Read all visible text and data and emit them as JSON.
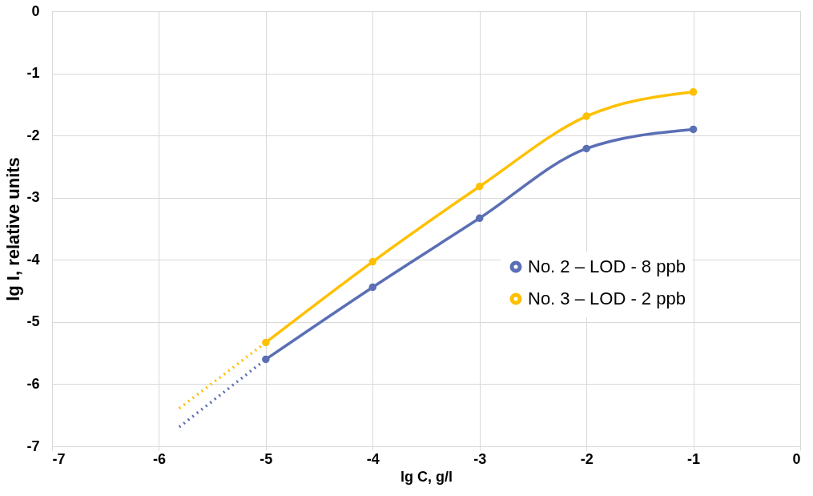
{
  "chart_data": {
    "type": "line",
    "xlabel": "lg C, g/l",
    "ylabel": "lg I, relative units",
    "xlim": [
      -7,
      0
    ],
    "xticks": [
      -7,
      -6,
      -5,
      -4,
      -3,
      -2,
      -1,
      0
    ],
    "ylim": [
      -7,
      0
    ],
    "yticks": [
      -7,
      -6,
      -5,
      -4,
      -3,
      -2,
      -1,
      0
    ],
    "grid": true,
    "legend": "right",
    "marker": "circle",
    "line_style": "solid",
    "series": [
      {
        "name": "No. 2 – LOD - 8 ppb",
        "color": "#5b6fb5",
        "x": [
          -5,
          -4,
          -3,
          -2,
          -1
        ],
        "values": [
          -5.6,
          -4.44,
          -3.33,
          -2.21,
          -1.9
        ]
      },
      {
        "name": "No. 3 – LOD - 2 ppb",
        "color": "#ffc000",
        "x": [
          -5,
          -4,
          -3,
          -2,
          -1
        ],
        "values": [
          -5.33,
          -4.03,
          -2.82,
          -1.69,
          -1.3
        ]
      },
      {
        "color": "#5b6fb5",
        "x": [
          -5.81,
          -5
        ],
        "values": [
          -6.69,
          -5.6
        ],
        "line_style": "dotted",
        "marker": "none"
      },
      {
        "color": "#ffc000",
        "x": [
          -5.81,
          -5
        ],
        "values": [
          -6.39,
          -5.33
        ],
        "line_style": "dotted",
        "marker": "none"
      }
    ]
  }
}
